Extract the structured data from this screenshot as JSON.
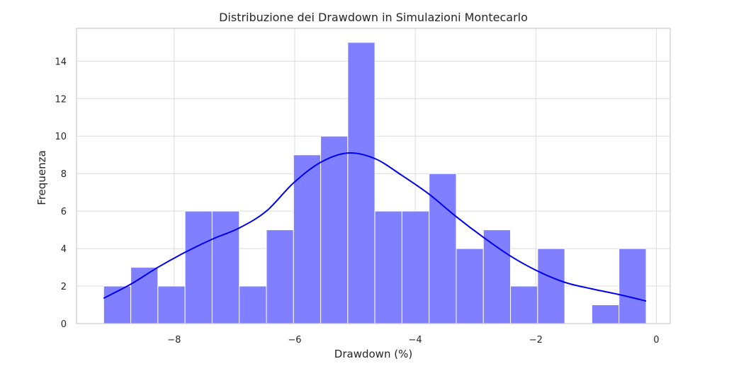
{
  "chart_data": {
    "type": "bar",
    "title": "Distribuzione dei Drawdown in Simulazioni Montecarlo",
    "xlabel": "Drawdown (%)",
    "ylabel": "Frequenza",
    "xlim": [
      -9.62,
      0.23
    ],
    "ylim": [
      0,
      15.75
    ],
    "x_ticks": [
      -8,
      -6,
      -4,
      -2,
      0
    ],
    "x_tick_labels": [
      "−8",
      "−6",
      "−4",
      "−2",
      "0"
    ],
    "y_ticks": [
      0,
      2,
      4,
      6,
      8,
      10,
      12,
      14
    ],
    "y_tick_labels": [
      "0",
      "2",
      "4",
      "6",
      "8",
      "10",
      "12",
      "14"
    ],
    "grid": true,
    "bins": [
      {
        "x0": -9.17,
        "x1": -8.72,
        "count": 2
      },
      {
        "x0": -8.72,
        "x1": -8.27,
        "count": 3
      },
      {
        "x0": -8.27,
        "x1": -7.82,
        "count": 2
      },
      {
        "x0": -7.82,
        "x1": -7.37,
        "count": 6
      },
      {
        "x0": -7.37,
        "x1": -6.92,
        "count": 6
      },
      {
        "x0": -6.92,
        "x1": -6.47,
        "count": 2
      },
      {
        "x0": -6.47,
        "x1": -6.02,
        "count": 5
      },
      {
        "x0": -6.02,
        "x1": -5.57,
        "count": 9
      },
      {
        "x0": -5.57,
        "x1": -5.12,
        "count": 10
      },
      {
        "x0": -5.12,
        "x1": -4.67,
        "count": 15
      },
      {
        "x0": -4.67,
        "x1": -4.22,
        "count": 6
      },
      {
        "x0": -4.22,
        "x1": -3.77,
        "count": 6
      },
      {
        "x0": -3.77,
        "x1": -3.32,
        "count": 8
      },
      {
        "x0": -3.32,
        "x1": -2.87,
        "count": 4
      },
      {
        "x0": -2.87,
        "x1": -2.42,
        "count": 5
      },
      {
        "x0": -2.42,
        "x1": -1.97,
        "count": 2
      },
      {
        "x0": -1.97,
        "x1": -1.52,
        "count": 4
      },
      {
        "x0": -1.52,
        "x1": -1.07,
        "count": 0
      },
      {
        "x0": -1.07,
        "x1": -0.62,
        "count": 1
      },
      {
        "x0": -0.62,
        "x1": -0.17,
        "count": 4
      }
    ],
    "kde": {
      "x": [
        -9.17,
        -8.72,
        -8.27,
        -7.82,
        -7.37,
        -6.92,
        -6.47,
        -6.02,
        -5.57,
        -5.12,
        -4.67,
        -4.22,
        -3.77,
        -3.32,
        -2.87,
        -2.42,
        -1.97,
        -1.52,
        -1.07,
        -0.62,
        -0.17
      ],
      "y": [
        1.35,
        2.1,
        3.0,
        3.8,
        4.5,
        5.1,
        6.0,
        7.5,
        8.6,
        9.1,
        8.8,
        7.9,
        6.9,
        5.7,
        4.6,
        3.6,
        2.8,
        2.2,
        1.85,
        1.55,
        1.2
      ]
    },
    "bar_color": "#7f7fff",
    "kde_color": "#0000ee"
  }
}
